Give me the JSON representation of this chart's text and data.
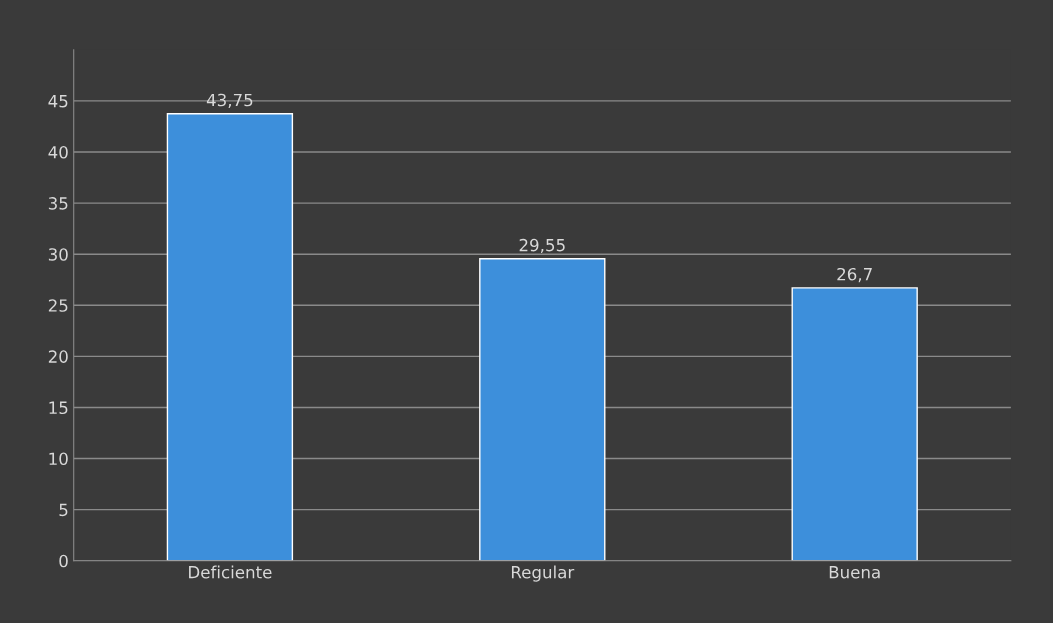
{
  "chart_data": {
    "type": "bar",
    "categories": [
      "Deficiente",
      "Regular",
      "Buena"
    ],
    "values": [
      43.75,
      29.55,
      26.7
    ],
    "value_labels": [
      "43,75",
      "29,55",
      "26,7"
    ],
    "color": "#3d8fdb",
    "ylim": [
      0,
      50
    ],
    "yticks": [
      0,
      5,
      10,
      15,
      20,
      25,
      30,
      35,
      40,
      45
    ],
    "grid": "y",
    "legend": false
  }
}
